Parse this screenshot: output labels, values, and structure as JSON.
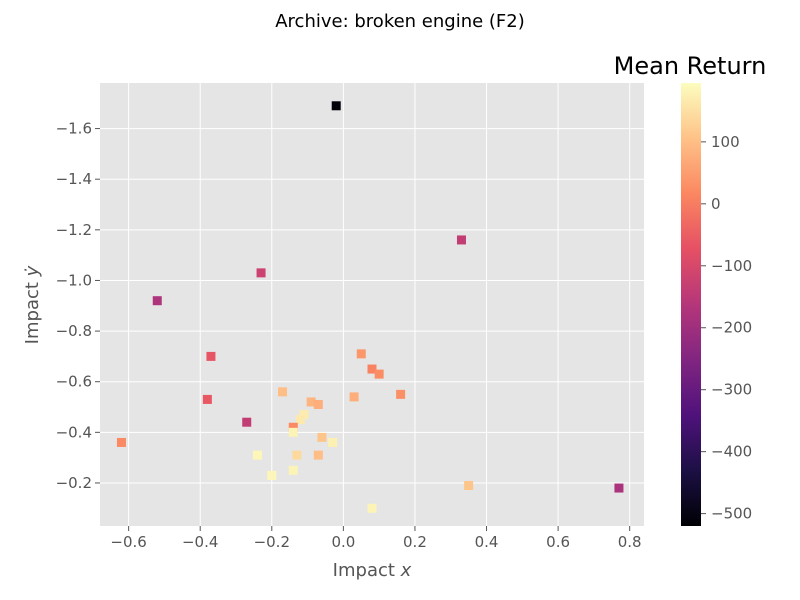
{
  "chart_data": {
    "type": "scatter",
    "title": "Archive: broken engine (F2)",
    "xlabel": "Impact $x$",
    "ylabel": "Impact $\\dot{y}$",
    "xlim": [
      -0.68,
      0.84
    ],
    "ylim": [
      -0.03,
      -1.78
    ],
    "y_inverted": true,
    "x_ticks": [
      "−0.6",
      "−0.4",
      "−0.2",
      "0.0",
      "0.2",
      "0.4",
      "0.6",
      "0.8"
    ],
    "y_ticks": [
      "−1.6",
      "−1.4",
      "−1.2",
      "−1.0",
      "−0.8",
      "−0.6",
      "−0.4",
      "−0.2"
    ],
    "grid": true,
    "background": "#e5e5e5",
    "grid_color": "#ffffff",
    "marker": "square",
    "colorbar": {
      "label": "Mean Return",
      "colormap": "magma",
      "range": [
        -520,
        195
      ],
      "ticks": [
        "100",
        "0",
        "−100",
        "−200",
        "−300",
        "−400",
        "−500"
      ]
    },
    "points": [
      {
        "x": -0.02,
        "y": -1.69,
        "value": -515
      },
      {
        "x": 0.33,
        "y": -1.16,
        "value": -140
      },
      {
        "x": -0.23,
        "y": -1.03,
        "value": -120
      },
      {
        "x": -0.52,
        "y": -0.92,
        "value": -175
      },
      {
        "x": -0.37,
        "y": -0.7,
        "value": -65
      },
      {
        "x": 0.05,
        "y": -0.71,
        "value": 40
      },
      {
        "x": 0.08,
        "y": -0.65,
        "value": 10
      },
      {
        "x": 0.1,
        "y": -0.63,
        "value": 25
      },
      {
        "x": 0.16,
        "y": -0.55,
        "value": 30
      },
      {
        "x": 0.03,
        "y": -0.54,
        "value": 75
      },
      {
        "x": -0.17,
        "y": -0.56,
        "value": 100
      },
      {
        "x": -0.38,
        "y": -0.53,
        "value": -60
      },
      {
        "x": -0.09,
        "y": -0.52,
        "value": 85
      },
      {
        "x": -0.07,
        "y": -0.51,
        "value": 75
      },
      {
        "x": -0.11,
        "y": -0.47,
        "value": 170
      },
      {
        "x": -0.12,
        "y": -0.45,
        "value": 165
      },
      {
        "x": -0.27,
        "y": -0.44,
        "value": -140
      },
      {
        "x": -0.14,
        "y": -0.42,
        "value": 20
      },
      {
        "x": -0.14,
        "y": -0.4,
        "value": 180
      },
      {
        "x": -0.06,
        "y": -0.38,
        "value": 110
      },
      {
        "x": -0.03,
        "y": -0.36,
        "value": 175
      },
      {
        "x": -0.62,
        "y": -0.36,
        "value": 20
      },
      {
        "x": -0.24,
        "y": -0.31,
        "value": 185
      },
      {
        "x": -0.13,
        "y": -0.31,
        "value": 140
      },
      {
        "x": -0.07,
        "y": -0.31,
        "value": 100
      },
      {
        "x": -0.14,
        "y": -0.25,
        "value": 180
      },
      {
        "x": -0.2,
        "y": -0.23,
        "value": 185
      },
      {
        "x": 0.35,
        "y": -0.19,
        "value": 110
      },
      {
        "x": 0.77,
        "y": -0.18,
        "value": -180
      },
      {
        "x": 0.08,
        "y": -0.1,
        "value": 180
      }
    ]
  }
}
